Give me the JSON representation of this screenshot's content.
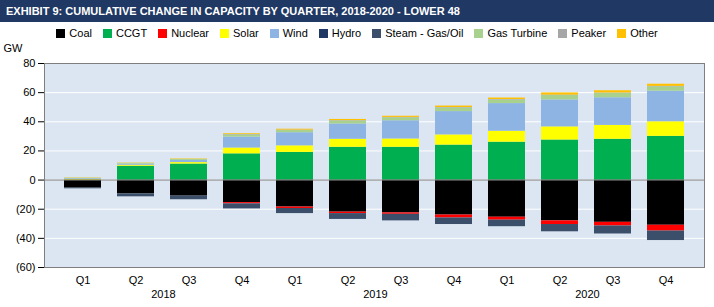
{
  "chart_data": {
    "type": "bar",
    "title": "EXHIBIT 9: CUMULATIVE CHANGE IN CAPACITY BY QUARTER, 2018-2020 - LOWER 48",
    "y_label": "GW",
    "categories": [
      "Q1",
      "Q2",
      "Q3",
      "Q4",
      "Q1",
      "Q2",
      "Q3",
      "Q4",
      "Q1",
      "Q2",
      "Q3",
      "Q4"
    ],
    "x_groups": [
      "2018",
      "2018",
      "2018",
      "2018",
      "2019",
      "2019",
      "2019",
      "2019",
      "2020",
      "2020",
      "2020",
      "2020"
    ],
    "stacked": true,
    "grid": true,
    "legend": "top",
    "ylim": [
      -60,
      80
    ],
    "yticks": [
      {
        "value": -60,
        "label": "(60)"
      },
      {
        "value": -40,
        "label": "(40)"
      },
      {
        "value": -20,
        "label": "(20)"
      },
      0,
      20,
      40,
      60,
      80
    ],
    "series": [
      {
        "name": "Coal",
        "color": "#000000",
        "values": [
          -5.5,
          -9.5,
          -11,
          -15.5,
          -18.5,
          -22,
          -22.5,
          -24,
          -25.5,
          -28,
          -29,
          -31
        ]
      },
      {
        "name": "CCGT",
        "color": "#00b050",
        "values": [
          0,
          9.5,
          11,
          18,
          19,
          22.5,
          22.5,
          24,
          26,
          27.5,
          28,
          30
        ]
      },
      {
        "name": "Nuclear",
        "color": "#ff0000",
        "values": [
          0,
          0,
          0,
          -0.8,
          -1,
          -1,
          -1,
          -2,
          -2,
          -2.5,
          -2.5,
          -4
        ]
      },
      {
        "name": "Solar",
        "color": "#ffff00",
        "values": [
          0.5,
          0.7,
          1,
          4,
          4.5,
          5.5,
          5.7,
          7,
          7.5,
          9,
          9.5,
          10
        ]
      },
      {
        "name": "Wind",
        "color": "#8eb4e3",
        "values": [
          0.5,
          0.8,
          1.5,
          7.5,
          9,
          10.5,
          12.5,
          16,
          19,
          18.5,
          19,
          21
        ]
      },
      {
        "name": "Hydro",
        "color": "#1f3864",
        "values": [
          0,
          0,
          0,
          0,
          0,
          0,
          0,
          0,
          0,
          0,
          0,
          0
        ]
      },
      {
        "name": "Steam - Gas/Oil",
        "color": "#3b4f6b",
        "values": [
          -0.5,
          -2,
          -2.5,
          -3.5,
          -3.5,
          -4,
          -4.5,
          -4.5,
          -4.5,
          -5,
          -5.5,
          -6.5
        ]
      },
      {
        "name": "Gas Turbine",
        "color": "#a9d18e",
        "values": [
          0.3,
          0.5,
          0.7,
          1.5,
          1.5,
          2,
          2,
          2.5,
          2.5,
          3,
          3,
          3
        ]
      },
      {
        "name": "Peaker",
        "color": "#a6a6a6",
        "values": [
          0,
          0,
          0,
          0.3,
          0.3,
          0.3,
          0.3,
          0.3,
          0.3,
          0.3,
          0.3,
          0.3
        ]
      },
      {
        "name": "Other",
        "color": "#ffc000",
        "values": [
          0.2,
          0.2,
          0.3,
          0.5,
          0.6,
          0.8,
          0.8,
          1,
          1,
          1.5,
          1.5,
          1.5
        ]
      }
    ]
  }
}
